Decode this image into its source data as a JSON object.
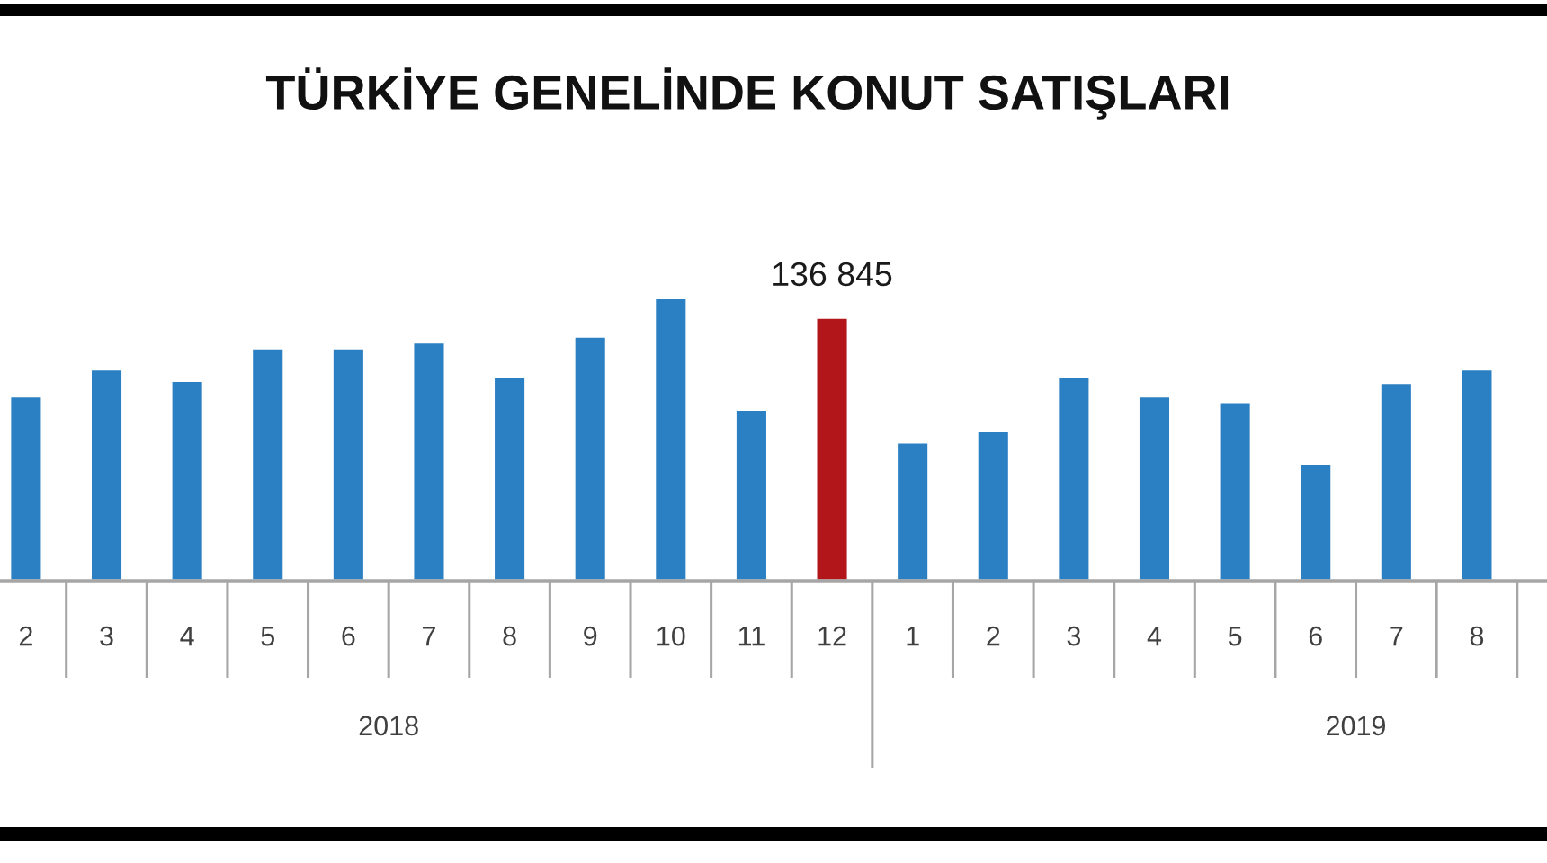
{
  "chart_data": {
    "type": "bar",
    "title": "TÜRKİYE GENELİNDE KONUT SATIŞLARI",
    "x": [
      "2018-02",
      "2018-03",
      "2018-04",
      "2018-05",
      "2018-06",
      "2018-07",
      "2018-08",
      "2018-09",
      "2018-10",
      "2018-11",
      "2018-12",
      "2019-01",
      "2019-02",
      "2019-03",
      "2019-04",
      "2019-05",
      "2019-06",
      "2019-07",
      "2019-08"
    ],
    "values": [
      96000,
      110000,
      104000,
      121000,
      121000,
      124000,
      106000,
      127000,
      147000,
      89000,
      136845,
      72000,
      78000,
      106000,
      96000,
      93000,
      61000,
      103000,
      110000
    ],
    "colors": [
      "#2b7fc3",
      "#2b7fc3",
      "#2b7fc3",
      "#2b7fc3",
      "#2b7fc3",
      "#2b7fc3",
      "#2b7fc3",
      "#2b7fc3",
      "#2b7fc3",
      "#2b7fc3",
      "#b2161b",
      "#2b7fc3",
      "#2b7fc3",
      "#2b7fc3",
      "#2b7fc3",
      "#2b7fc3",
      "#2b7fc3",
      "#2b7fc3",
      "#2b7fc3"
    ],
    "value_labels": [
      null,
      null,
      null,
      null,
      null,
      null,
      null,
      null,
      null,
      null,
      "136 845",
      null,
      null,
      null,
      null,
      null,
      null,
      null,
      null
    ],
    "xlim": [
      "2018-01-22",
      "2019-08-28"
    ],
    "xticks": [
      {
        "value": "2018-02",
        "label": "2"
      },
      {
        "value": "2018-03",
        "label": "3"
      },
      {
        "value": "2018-04",
        "label": "4"
      },
      {
        "value": "2018-05",
        "label": "5"
      },
      {
        "value": "2018-06",
        "label": "6"
      },
      {
        "value": "2018-07",
        "label": "7"
      },
      {
        "value": "2018-08",
        "label": "8"
      },
      {
        "value": "2018-09",
        "label": "9"
      },
      {
        "value": "2018-10",
        "label": "10"
      },
      {
        "value": "2018-11",
        "label": "11"
      },
      {
        "value": "2018-12",
        "label": "12"
      },
      {
        "value": "2019-01",
        "label": "1"
      },
      {
        "value": "2019-02",
        "label": "2"
      },
      {
        "value": "2019-03",
        "label": "3"
      },
      {
        "value": "2019-04",
        "label": "4"
      },
      {
        "value": "2019-05",
        "label": "5"
      },
      {
        "value": "2019-06",
        "label": "6"
      },
      {
        "value": "2019-07",
        "label": "7"
      },
      {
        "value": "2019-08",
        "label": "8"
      }
    ],
    "tick_labels": "x",
    "annotations": [
      "2018",
      "2019"
    ]
  }
}
